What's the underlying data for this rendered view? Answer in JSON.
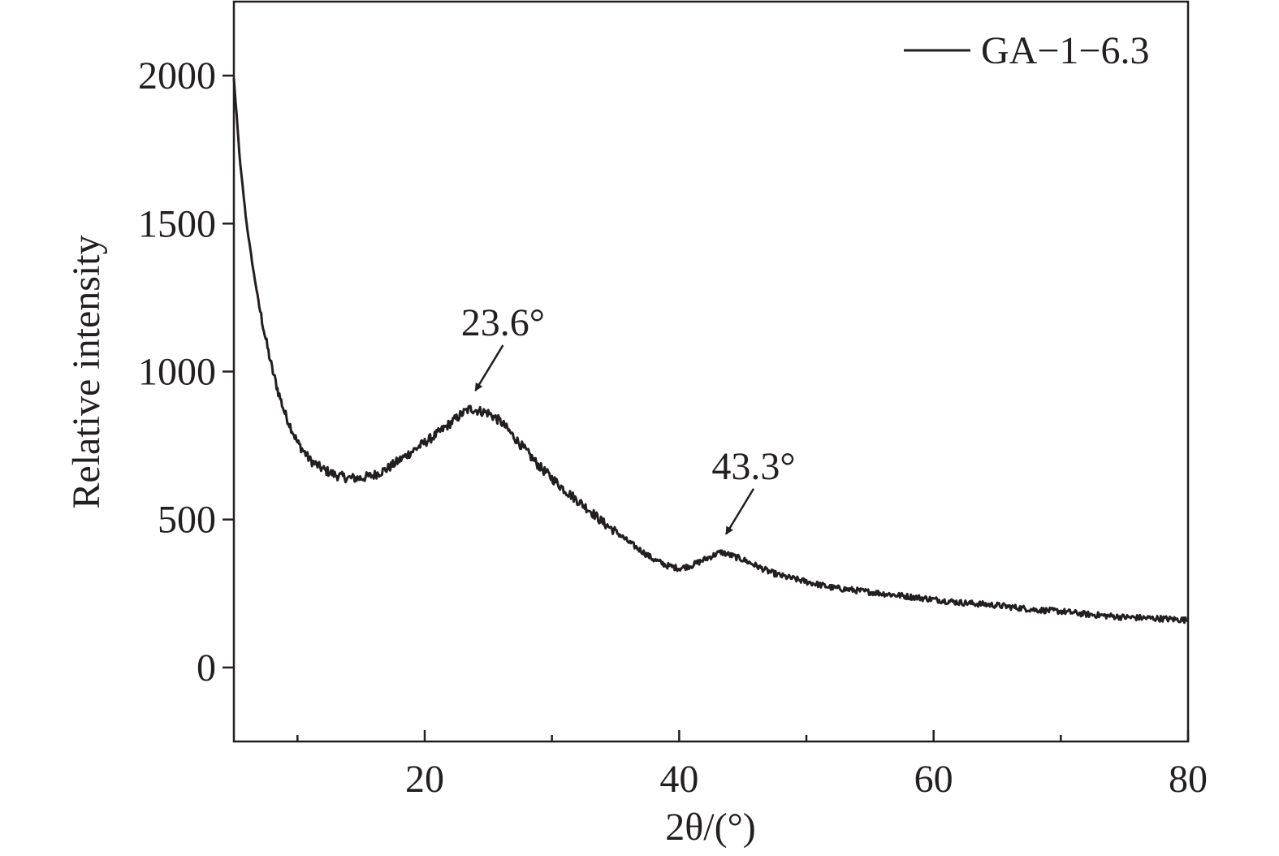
{
  "chart_data": {
    "type": "line",
    "title": "",
    "xlabel": "2θ/(°)",
    "ylabel": "Relative intensity",
    "xlim": [
      5,
      80
    ],
    "ylim": [
      -250,
      2250
    ],
    "x_ticks": [
      20,
      40,
      60,
      80
    ],
    "x_minor_ticks": [
      10,
      30,
      50,
      70
    ],
    "y_ticks": [
      0,
      500,
      1000,
      1500,
      2000
    ],
    "grid": false,
    "legend_position": "top-right",
    "line_color": "#231f20",
    "series": [
      {
        "name": "GA−1−6.3",
        "x": [
          5,
          5.5,
          6,
          6.5,
          7,
          7.5,
          8,
          8.5,
          9,
          10,
          11,
          12,
          13,
          14,
          15,
          16,
          17,
          18,
          19,
          20,
          21,
          22,
          23,
          23.6,
          24,
          25,
          26,
          27,
          28,
          29,
          30,
          31,
          32,
          33,
          34,
          35,
          36,
          37,
          38,
          39,
          40,
          41,
          42,
          43,
          43.3,
          44,
          45,
          46,
          47,
          48,
          50,
          52,
          55,
          58,
          60,
          62,
          65,
          68,
          70,
          72,
          75,
          78,
          80
        ],
        "y": [
          1990,
          1700,
          1500,
          1350,
          1220,
          1110,
          1010,
          930,
          860,
          760,
          700,
          670,
          650,
          640,
          640,
          650,
          670,
          700,
          730,
          760,
          790,
          825,
          860,
          875,
          870,
          860,
          830,
          780,
          730,
          680,
          640,
          600,
          565,
          530,
          490,
          460,
          425,
          395,
          365,
          345,
          335,
          345,
          365,
          385,
          390,
          380,
          365,
          345,
          325,
          310,
          290,
          270,
          255,
          240,
          230,
          220,
          210,
          195,
          190,
          180,
          170,
          165,
          160
        ]
      }
    ],
    "annotations": [
      {
        "text": "23.6°",
        "x": 23.6,
        "y": 875
      },
      {
        "text": "43.3°",
        "x": 43.3,
        "y": 390
      }
    ]
  }
}
